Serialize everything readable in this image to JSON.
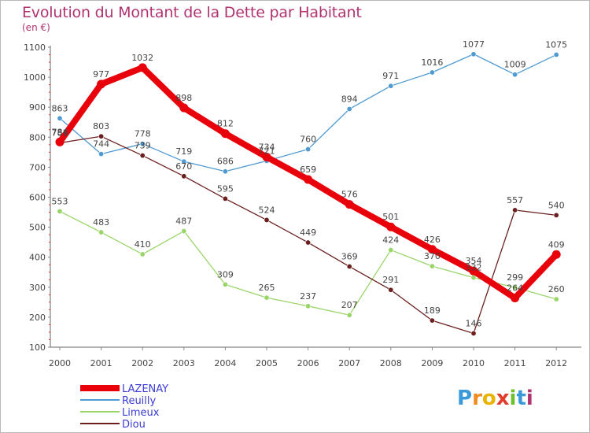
{
  "chart_data": {
    "type": "line",
    "title": "Evolution du Montant de la Dette par Habitant",
    "subtitle": "(en €)",
    "x": [
      "2000",
      "2001",
      "2002",
      "2003",
      "2004",
      "2005",
      "2006",
      "2007",
      "2008",
      "2009",
      "2010",
      "2011",
      "2012"
    ],
    "ylim": [
      100,
      1100
    ],
    "yticks": [
      100,
      200,
      300,
      400,
      500,
      600,
      700,
      800,
      900,
      1000,
      1100
    ],
    "grid": false,
    "legend_position": "bottom-left",
    "series": [
      {
        "name": "LAZENAY",
        "color": "#e8000b",
        "values": [
          784,
          977,
          1032,
          898,
          812,
          734,
          659,
          576,
          501,
          426,
          354,
          264,
          409
        ]
      },
      {
        "name": "Reuilly",
        "color": "#4f9ad1",
        "values": [
          863,
          744,
          778,
          719,
          686,
          721,
          760,
          894,
          971,
          1016,
          1077,
          1009,
          1075
        ]
      },
      {
        "name": "Limeux",
        "color": "#9ad56a",
        "values": [
          553,
          483,
          410,
          487,
          309,
          265,
          237,
          207,
          424,
          370,
          332,
          299,
          260
        ]
      },
      {
        "name": "Diou",
        "color": "#6b1f1f",
        "values": [
          781,
          803,
          739,
          670,
          595,
          524,
          449,
          369,
          291,
          189,
          146,
          557,
          540
        ]
      }
    ]
  },
  "logo": {
    "letters": [
      "P",
      "r",
      "o",
      "x",
      "i",
      "t",
      "i"
    ],
    "colors": [
      "#3a9ad9",
      "#f08c1e",
      "#e9b400",
      "#e23b2a",
      "#6fbf2a",
      "#3a9ad9",
      "#b0336f"
    ]
  }
}
